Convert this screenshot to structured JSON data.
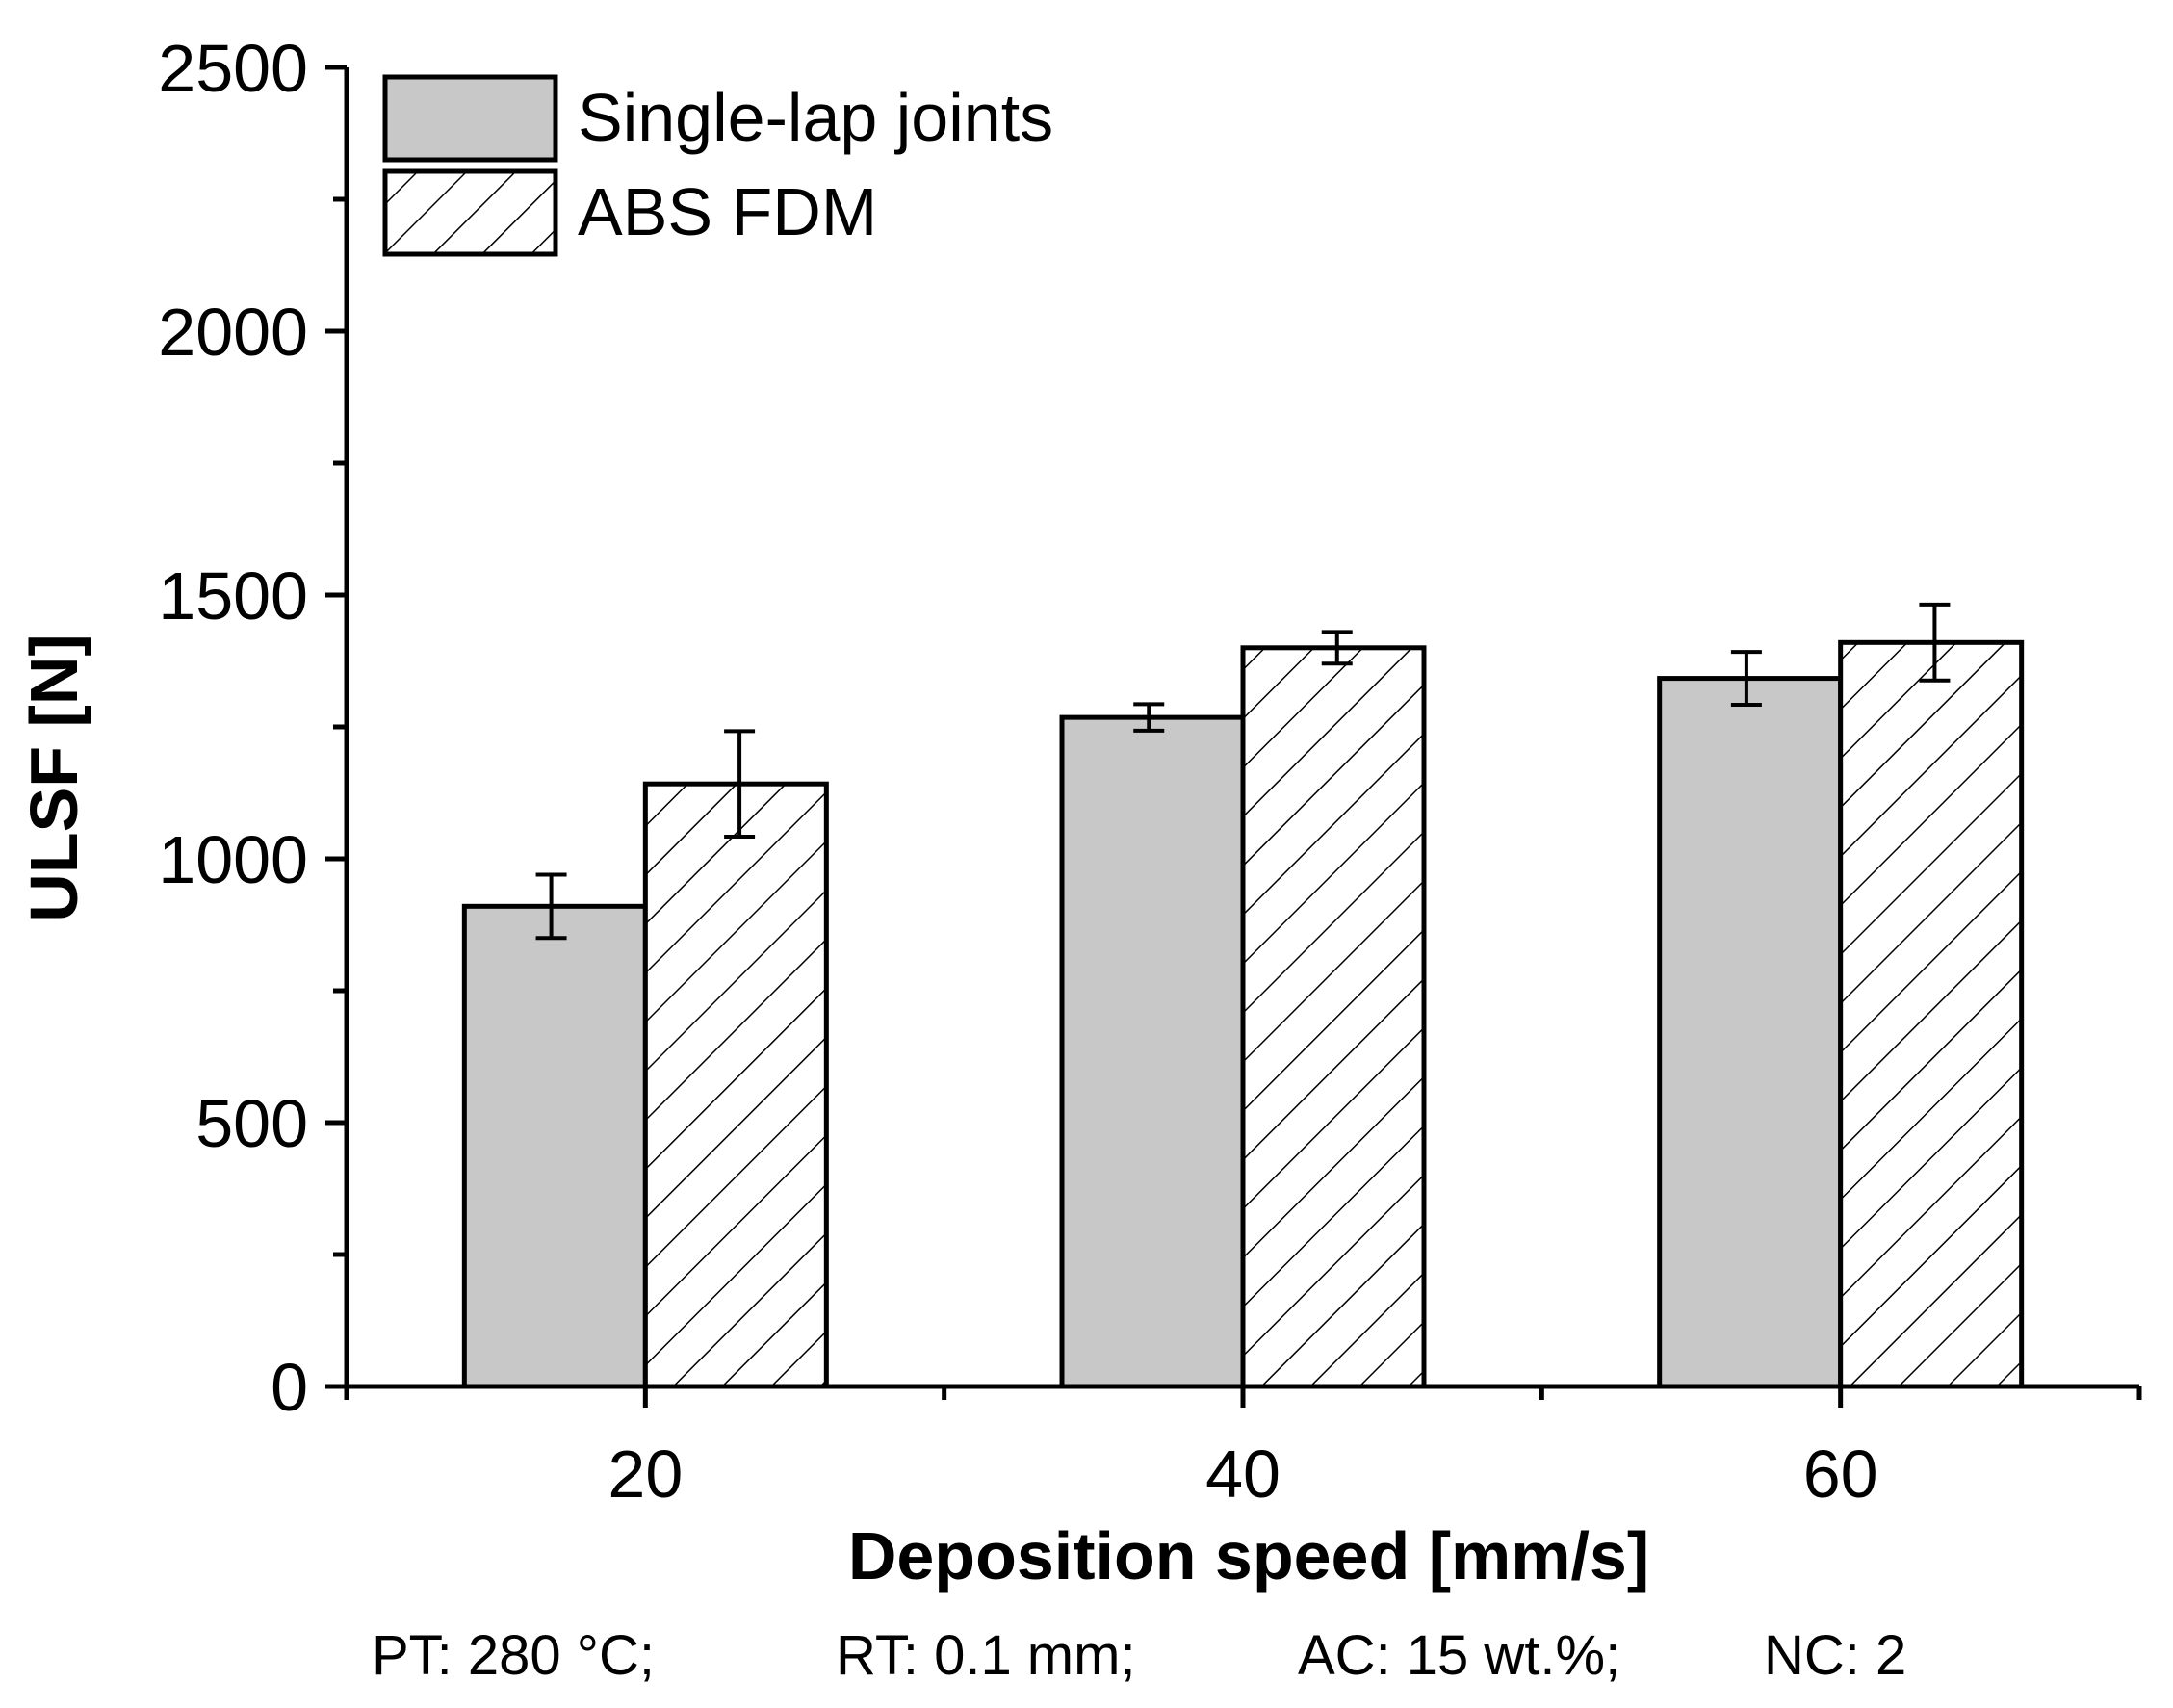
{
  "chart_data": {
    "type": "bar",
    "categories": [
      "20",
      "40",
      "60"
    ],
    "series": [
      {
        "name": "Single-lap joints",
        "values": [
          910,
          1268,
          1342
        ],
        "errors": [
          60,
          25,
          50
        ],
        "fill": "#c8c8c8",
        "pattern": "solid"
      },
      {
        "name": "ABS FDM",
        "values": [
          1142,
          1400,
          1410
        ],
        "errors": [
          100,
          30,
          72
        ],
        "fill": "#ffffff",
        "pattern": "hatch"
      }
    ],
    "xlabel": "Deposition speed [mm/s]",
    "ylabel": "ULSF [N]",
    "ylim": [
      0,
      2500
    ],
    "yticks": [
      "0",
      "500",
      "1000",
      "1500",
      "2000",
      "2500"
    ],
    "legend_position": "top-left",
    "grid": false
  },
  "footnote": {
    "pt": "PT: 280 °C;",
    "rt": "RT: 0.1 mm;",
    "ac": "AC: 15 wt.%;",
    "nc": "NC: 2"
  }
}
